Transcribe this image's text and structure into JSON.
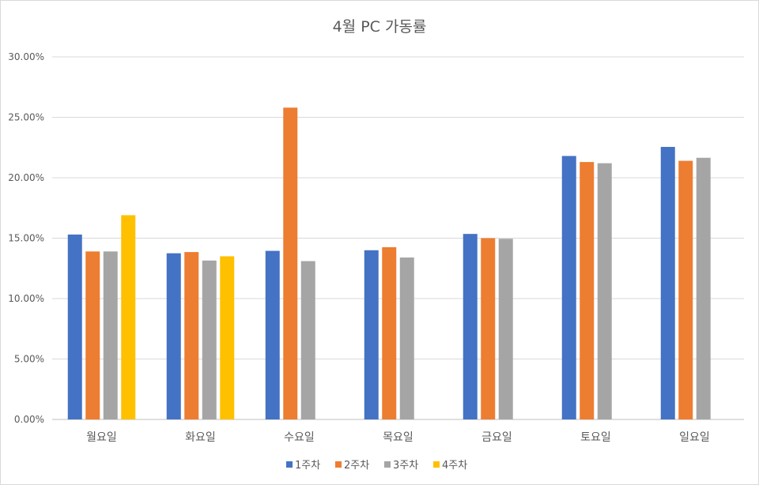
{
  "chart_data": {
    "type": "bar",
    "title": "4월 PC 가동률",
    "xlabel": "",
    "ylabel": "",
    "categories": [
      "월요일",
      "화요일",
      "수요일",
      "목요일",
      "금요일",
      "토요일",
      "일요일"
    ],
    "y_ticks": [
      "0.00%",
      "5.00%",
      "10.00%",
      "15.00%",
      "20.00%",
      "25.00%",
      "30.00%"
    ],
    "ylim": [
      0,
      30
    ],
    "grid": true,
    "legend_position": "bottom",
    "series": [
      {
        "name": "1주차",
        "color": "#4472C4",
        "values": [
          15.3,
          13.75,
          13.95,
          14.0,
          15.35,
          21.8,
          22.55
        ]
      },
      {
        "name": "2주차",
        "color": "#ED7D31",
        "values": [
          13.9,
          13.85,
          25.8,
          14.25,
          15.0,
          21.3,
          21.4
        ]
      },
      {
        "name": "3주차",
        "color": "#A5A5A5",
        "values": [
          13.9,
          13.15,
          13.1,
          13.4,
          14.95,
          21.2,
          21.65
        ]
      },
      {
        "name": "4주차",
        "color": "#FFC000",
        "values": [
          16.9,
          13.5,
          null,
          null,
          null,
          null,
          null
        ]
      }
    ]
  }
}
